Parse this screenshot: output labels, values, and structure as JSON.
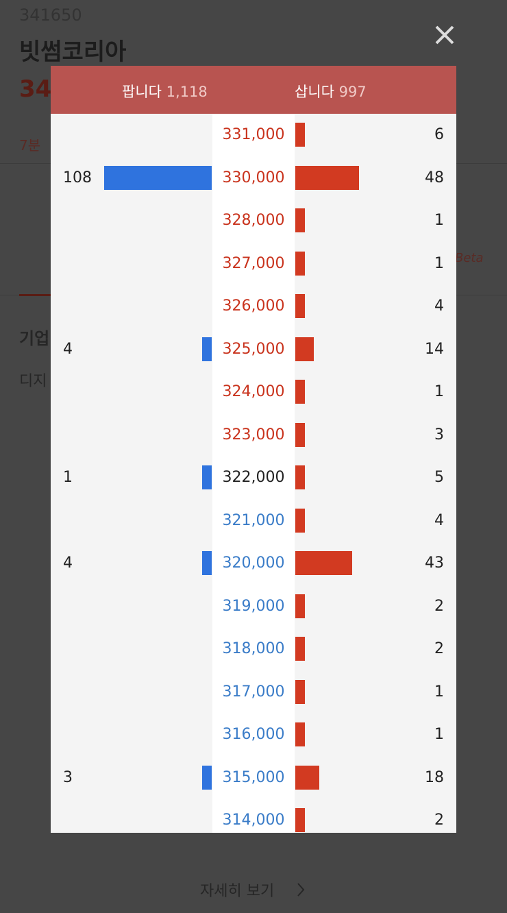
{
  "background": {
    "code": "341650",
    "name": "빗썸코리아",
    "price_fragment": "34",
    "time_fragment": "7분",
    "section_fragment": "기업",
    "desc_fragment": "디지",
    "beta": "Beta",
    "more": "자세히 보기"
  },
  "order_book": {
    "sell_label": "팝니다",
    "sell_total": "1,118",
    "buy_label": "삽니다",
    "buy_total": "997",
    "sell_color": "#2f73de",
    "buy_color": "#d23a21",
    "rows": [
      {
        "price": "331,000",
        "color": "#c9331d",
        "sell": null,
        "buy": 6
      },
      {
        "price": "330,000",
        "color": "#c9331d",
        "sell": 108,
        "buy": 48
      },
      {
        "price": "328,000",
        "color": "#c9331d",
        "sell": null,
        "buy": 1
      },
      {
        "price": "327,000",
        "color": "#c9331d",
        "sell": null,
        "buy": 1
      },
      {
        "price": "326,000",
        "color": "#c9331d",
        "sell": null,
        "buy": 4
      },
      {
        "price": "325,000",
        "color": "#c9331d",
        "sell": 4,
        "buy": 14
      },
      {
        "price": "324,000",
        "color": "#c9331d",
        "sell": null,
        "buy": 1
      },
      {
        "price": "323,000",
        "color": "#c9331d",
        "sell": null,
        "buy": 3
      },
      {
        "price": "322,000",
        "color": "#222222",
        "sell": 1,
        "buy": 5
      },
      {
        "price": "321,000",
        "color": "#3a7cc8",
        "sell": null,
        "buy": 4
      },
      {
        "price": "320,000",
        "color": "#3a7cc8",
        "sell": 4,
        "buy": 43
      },
      {
        "price": "319,000",
        "color": "#3a7cc8",
        "sell": null,
        "buy": 2
      },
      {
        "price": "318,000",
        "color": "#3a7cc8",
        "sell": null,
        "buy": 2
      },
      {
        "price": "317,000",
        "color": "#3a7cc8",
        "sell": null,
        "buy": 1
      },
      {
        "price": "316,000",
        "color": "#3a7cc8",
        "sell": null,
        "buy": 1
      },
      {
        "price": "315,000",
        "color": "#3a7cc8",
        "sell": 3,
        "buy": 18
      },
      {
        "price": "314,000",
        "color": "#3a7cc8",
        "sell": null,
        "buy": 2
      }
    ]
  }
}
